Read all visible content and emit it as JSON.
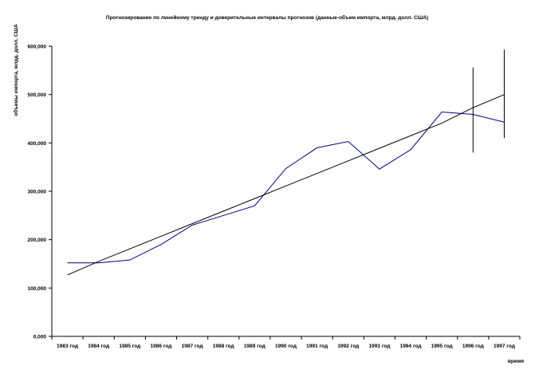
{
  "chart_data": {
    "type": "line",
    "title": "Прогнозирование по линейному тренду и доверительные интервалы прогнозов (данные-объем импорта, млрд. долл. США)",
    "xlabel": "время",
    "ylabel": "объемы импорта, млрд. долл. США",
    "categories": [
      "1983 год",
      "1984 год",
      "1985 год",
      "1986 год",
      "1987 год",
      "1988 год",
      "1989 год",
      "1990 год",
      "1991 год",
      "1992 год",
      "1993 год",
      "1994 год",
      "1995 год",
      "1996 год",
      "1997 год"
    ],
    "y_ticks": [
      "0,000",
      "100,000",
      "200,000",
      "300,000",
      "400,000",
      "500,000",
      "600,000"
    ],
    "ylim": [
      0,
      600
    ],
    "grid": false,
    "legend": "none",
    "series": [
      {
        "color": "#000080",
        "values": [
          152,
          152,
          158,
          190,
          230,
          250,
          270,
          347,
          390,
          403,
          346,
          386,
          464,
          459,
          443
        ]
      },
      {
        "color": "#000000",
        "values": [
          127,
          155,
          181,
          207,
          233,
          259,
          285,
          311,
          337,
          363,
          389,
          415,
          441,
          473,
          500
        ]
      }
    ],
    "error_bars": [
      {
        "category": "1996 год",
        "low": 380,
        "high": 556
      },
      {
        "category": "1997 год",
        "low": 410,
        "high": 593
      }
    ]
  }
}
